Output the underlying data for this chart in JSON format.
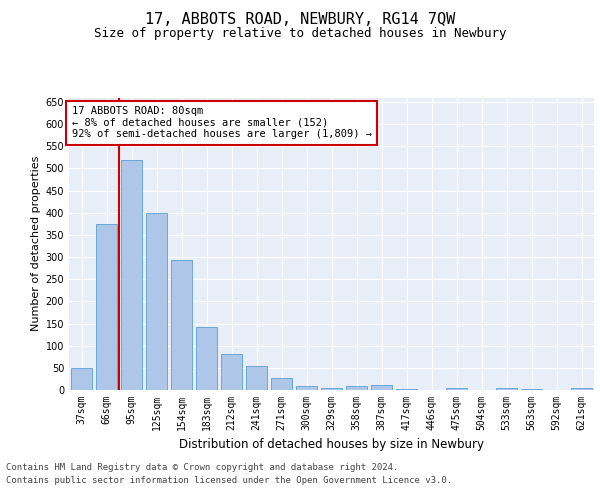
{
  "title": "17, ABBOTS ROAD, NEWBURY, RG14 7QW",
  "subtitle": "Size of property relative to detached houses in Newbury",
  "xlabel": "Distribution of detached houses by size in Newbury",
  "ylabel": "Number of detached properties",
  "categories": [
    "37sqm",
    "66sqm",
    "95sqm",
    "125sqm",
    "154sqm",
    "183sqm",
    "212sqm",
    "241sqm",
    "271sqm",
    "300sqm",
    "329sqm",
    "358sqm",
    "387sqm",
    "417sqm",
    "446sqm",
    "475sqm",
    "504sqm",
    "533sqm",
    "563sqm",
    "592sqm",
    "621sqm"
  ],
  "values": [
    50,
    375,
    520,
    400,
    293,
    143,
    82,
    55,
    28,
    10,
    5,
    10,
    12,
    2,
    0,
    5,
    0,
    5,
    2,
    0,
    4
  ],
  "bar_color": "#aec6e8",
  "bar_edge_color": "#5a9fd4",
  "background_color": "#e8eef8",
  "grid_color": "#ffffff",
  "annotation_text": "17 ABBOTS ROAD: 80sqm\n← 8% of detached houses are smaller (152)\n92% of semi-detached houses are larger (1,809) →",
  "annotation_box_color": "#ffffff",
  "annotation_box_edge_color": "#cc0000",
  "vline_color": "#cc0000",
  "ylim": [
    0,
    660
  ],
  "yticks": [
    0,
    50,
    100,
    150,
    200,
    250,
    300,
    350,
    400,
    450,
    500,
    550,
    600,
    650
  ],
  "footer_line1": "Contains HM Land Registry data © Crown copyright and database right 2024.",
  "footer_line2": "Contains public sector information licensed under the Open Government Licence v3.0.",
  "title_fontsize": 11,
  "subtitle_fontsize": 9,
  "annotation_fontsize": 7.5,
  "footer_fontsize": 6.5,
  "ylabel_fontsize": 8,
  "xlabel_fontsize": 8.5,
  "tick_fontsize": 7
}
